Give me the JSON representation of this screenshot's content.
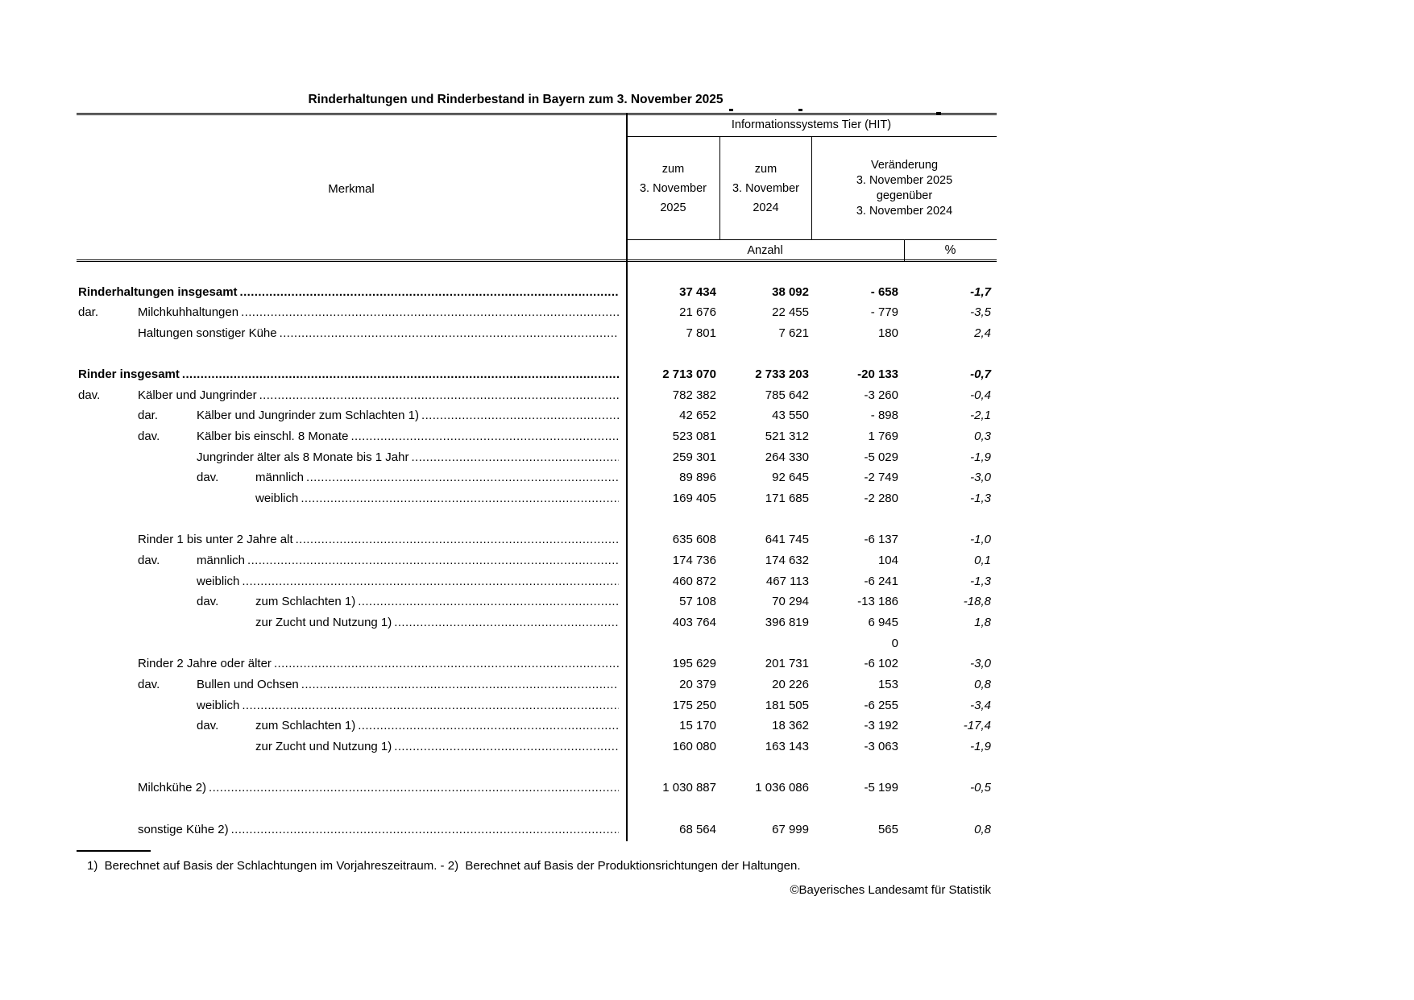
{
  "title": "Rinderhaltungen und Rinderbestand in Bayern zum 3. November 2025",
  "header": {
    "merkmal_label": "Merkmal",
    "source_system": "Informationssystems Tier (HIT)",
    "col_2025": [
      "zum",
      "3. November",
      "2025"
    ],
    "col_2024": [
      "zum",
      "3. November",
      "2024"
    ],
    "col_change": [
      "Veränderung",
      "3. November 2025",
      "gegenüber",
      "3. November 2024"
    ],
    "unit_count": "Anzahl",
    "unit_percent": "%"
  },
  "table": {
    "leader_char": ".",
    "columns": [
      "Merkmal",
      "zum 3. November 2025",
      "zum 3. November 2024",
      "Veränderung Anzahl",
      "Veränderung %"
    ],
    "rows": [
      {
        "label": "Rinderhaltungen insgesamt",
        "li": 0,
        "bold": true,
        "v2025": "37 434",
        "v2024": "38 092",
        "diff": "- 658",
        "pct": "-1,7"
      },
      {
        "q": "dar.",
        "qi": 0,
        "label": "Milchkuhhaltungen",
        "li": 1,
        "v2025": "21 676",
        "v2024": "22 455",
        "diff": "- 779",
        "pct": "-3,5"
      },
      {
        "label": "Haltungen sonstiger Kühe",
        "li": 1,
        "v2025": "7 801",
        "v2024": "7 621",
        "diff": "180",
        "pct": "2,4"
      },
      {
        "spacer": true
      },
      {
        "label": "Rinder insgesamt",
        "li": 0,
        "bold": true,
        "v2025": "2 713 070",
        "v2024": "2 733 203",
        "diff": "-20 133",
        "pct": "-0,7"
      },
      {
        "q": "dav.",
        "qi": 0,
        "label": "Kälber und Jungrinder",
        "li": 1,
        "v2025": "782 382",
        "v2024": "785 642",
        "diff": "-3 260",
        "pct": "-0,4"
      },
      {
        "q": "dar.",
        "qi": 1,
        "label": "Kälber und Jungrinder zum Schlachten 1)",
        "li": 2,
        "v2025": "42 652",
        "v2024": "43 550",
        "diff": "- 898",
        "pct": "-2,1"
      },
      {
        "q": "dav.",
        "qi": 1,
        "label": "Kälber bis einschl. 8 Monate",
        "li": 2,
        "v2025": "523 081",
        "v2024": "521 312",
        "diff": "1 769",
        "pct": "0,3"
      },
      {
        "label": "Jungrinder älter als 8 Monate bis 1 Jahr",
        "li": 2,
        "v2025": "259 301",
        "v2024": "264 330",
        "diff": "-5 029",
        "pct": "-1,9"
      },
      {
        "q": "dav.",
        "qi": 2,
        "label": "männlich",
        "li": 3,
        "v2025": "89 896",
        "v2024": "92 645",
        "diff": "-2 749",
        "pct": "-3,0"
      },
      {
        "label": "weiblich",
        "li": 3,
        "v2025": "169 405",
        "v2024": "171 685",
        "diff": "-2 280",
        "pct": "-1,3"
      },
      {
        "spacer": true
      },
      {
        "label": "Rinder 1 bis unter 2 Jahre alt",
        "li": 1,
        "v2025": "635 608",
        "v2024": "641 745",
        "diff": "-6 137",
        "pct": "-1,0"
      },
      {
        "q": "dav.",
        "qi": 1,
        "label": "männlich",
        "li": 2,
        "v2025": "174 736",
        "v2024": "174 632",
        "diff": "104",
        "pct": "0,1"
      },
      {
        "label": "weiblich",
        "li": 2,
        "v2025": "460 872",
        "v2024": "467 113",
        "diff": "-6 241",
        "pct": "-1,3"
      },
      {
        "q": "dav.",
        "qi": 2,
        "label": "zum Schlachten 1)",
        "li": 3,
        "v2025": "57 108",
        "v2024": "70 294",
        "diff": "-13 186",
        "pct": "-18,8"
      },
      {
        "label": "zur Zucht und Nutzung 1)",
        "li": 3,
        "v2025": "403 764",
        "v2024": "396 819",
        "diff": "6 945",
        "pct": "1,8"
      },
      {
        "diff": "0"
      },
      {
        "label": "Rinder 2 Jahre oder älter",
        "li": 1,
        "v2025": "195 629",
        "v2024": "201 731",
        "diff": "-6 102",
        "pct": "-3,0"
      },
      {
        "q": "dav.",
        "qi": 1,
        "label": "Bullen und Ochsen",
        "li": 2,
        "v2025": "20 379",
        "v2024": "20 226",
        "diff": "153",
        "pct": "0,8"
      },
      {
        "label": "weiblich",
        "li": 2,
        "v2025": "175 250",
        "v2024": "181 505",
        "diff": "-6 255",
        "pct": "-3,4"
      },
      {
        "q": "dav.",
        "qi": 2,
        "label": "zum Schlachten 1)",
        "li": 3,
        "v2025": "15 170",
        "v2024": "18 362",
        "diff": "-3 192",
        "pct": "-17,4"
      },
      {
        "label": "zur Zucht und Nutzung 1)",
        "li": 3,
        "v2025": "160 080",
        "v2024": "163 143",
        "diff": "-3 063",
        "pct": "-1,9"
      },
      {
        "spacer": true
      },
      {
        "label": "Milchkühe 2)",
        "li": 1,
        "v2025": "1 030 887",
        "v2024": "1 036 086",
        "diff": "-5 199",
        "pct": "-0,5"
      },
      {
        "spacer": true
      },
      {
        "label": "sonstige Kühe 2)",
        "li": 1,
        "v2025": "68 564",
        "v2024": "67 999",
        "diff": "565",
        "pct": "0,8"
      }
    ]
  },
  "footnote": "1)  Berechnet auf Basis der Schlachtungen im Vorjahreszeitraum. - 2)  Berechnet auf Basis der Produktionsrichtungen der Haltungen.",
  "copyright": "©Bayerisches Landesamt für Statistik"
}
